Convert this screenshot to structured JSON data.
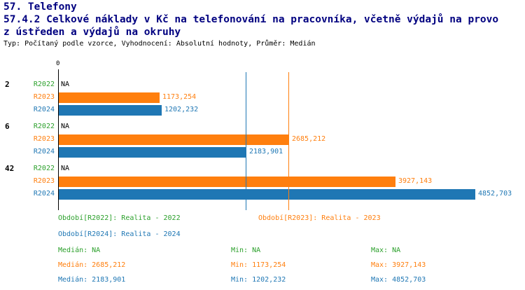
{
  "header": {
    "line1": "57. Telefony",
    "line2": "57.4.2 Celkové náklady v Kč na telefonování na pracovníka, včetně výdajů na provo",
    "line3": "z ústředen a výdajů na okruhy",
    "subtitle": "Typ: Počítaný podle vzorce, Vyhodnocení: Absolutní hodnoty, Průměr: Medián",
    "title_color": "#000080",
    "subtitle_color": "#000000"
  },
  "chart_data": {
    "type": "bar",
    "orientation": "horizontal",
    "title": "57.4.2 Celkové náklady v Kč na telefonování na pracovníka, včetně výdajů na provoz ústředen a výdajů na okruhy",
    "subtitle": "Typ: Počítaný podle vzorce, Vyhodnocení: Absolutní hodnoty, Průměr: Medián",
    "categories": [
      "2",
      "6",
      "42"
    ],
    "series": [
      {
        "name": "R2022",
        "color": "#2ca02c",
        "values": [
          null,
          null,
          null
        ],
        "value_labels": [
          "NA",
          "NA",
          "NA"
        ]
      },
      {
        "name": "R2023",
        "color": "#ff7f0e",
        "values": [
          1173.254,
          2685.212,
          3927.143
        ],
        "value_labels": [
          "1173,254",
          "2685,212",
          "3927,143"
        ]
      },
      {
        "name": "R2024",
        "color": "#1f77b4",
        "values": [
          1202.232,
          2183.901,
          4852.703
        ],
        "value_labels": [
          "1202,232",
          "2183,901",
          "4852,703"
        ]
      }
    ],
    "xlim": [
      0,
      5400
    ],
    "x_tick_labels": [
      "0"
    ],
    "reference_lines": [
      {
        "name": "median-r2023",
        "value": 2685.212,
        "color": "#ff7f0e"
      },
      {
        "name": "median-r2024",
        "value": 2183.901,
        "color": "#1f77b4"
      }
    ],
    "grid": false,
    "legend_position": "bottom",
    "na_label_color": "#000000",
    "axis_color": "#000000"
  },
  "legend": {
    "items": [
      {
        "series": "R2022",
        "text": "Období[R2022]: Realita - 2022",
        "color": "#2ca02c",
        "row": 0,
        "col": 0
      },
      {
        "series": "R2023",
        "text": "Období[R2023]: Realita - 2023",
        "color": "#ff7f0e",
        "row": 0,
        "col": 1
      },
      {
        "series": "R2024",
        "text": "Období[R2024]: Realita - 2024",
        "color": "#1f77b4",
        "row": 1,
        "col": 0
      }
    ]
  },
  "stats": {
    "rows": [
      {
        "series": "R2022",
        "color": "#2ca02c",
        "median": "Medián: NA",
        "min": "Min: NA",
        "max": "Max: NA"
      },
      {
        "series": "R2023",
        "color": "#ff7f0e",
        "median": "Medián: 2685,212",
        "min": "Min: 1173,254",
        "max": "Max: 3927,143"
      },
      {
        "series": "R2024",
        "color": "#1f77b4",
        "median": "Medián: 2183,901",
        "min": "Min: 1202,232",
        "max": "Max: 4852,703"
      }
    ]
  }
}
